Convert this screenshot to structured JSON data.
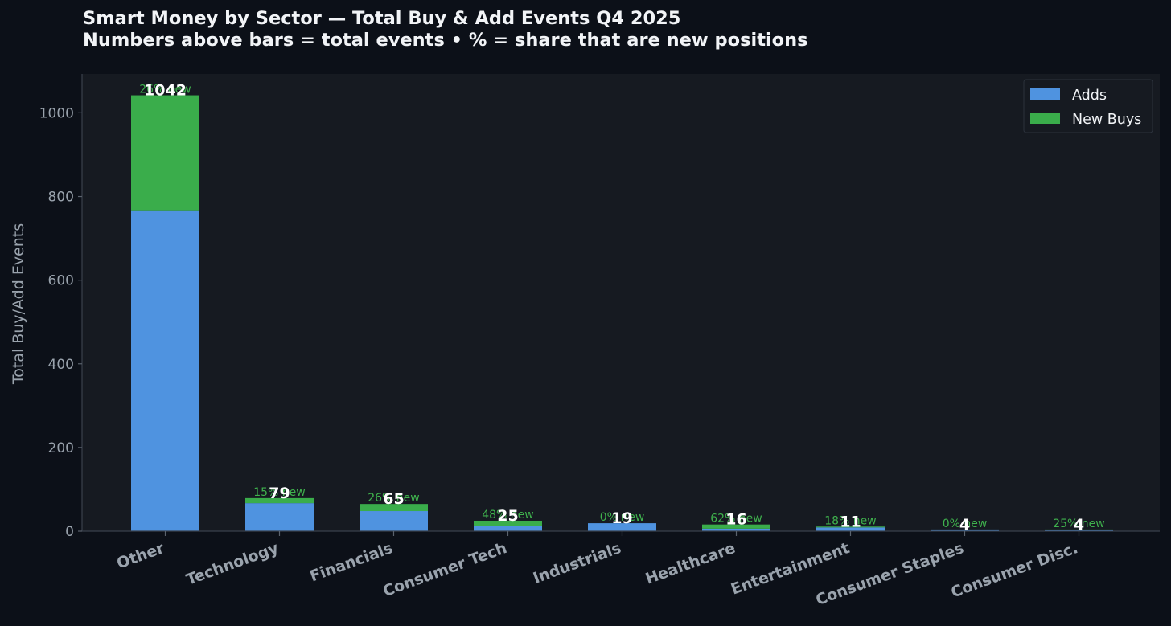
{
  "title_line1": "Smart Money by Sector — Total Buy & Add Events Q4 2025",
  "title_line2": "Numbers above bars = total events  •  % = share that are new positions",
  "colors": {
    "page_background": "#0c1018",
    "plot_background": "#161a21",
    "adds": "#4f93e0",
    "new_buys": "#3aad4b",
    "pct_text": "#3fb24d",
    "axis_text": "#9aa3ad",
    "title_text": "#f2f4f7"
  },
  "chart_data": {
    "type": "bar",
    "stacked": true,
    "title": "Smart Money by Sector — Total Buy & Add Events Q4 2025",
    "subtitle": "Numbers above bars = total events  •  % = share that are new positions",
    "xlabel": "",
    "ylabel": "Total Buy/Add Events",
    "categories": [
      "Other",
      "Technology",
      "Financials",
      "Consumer Tech",
      "Industrials",
      "Healthcare",
      "Entertainment",
      "Consumer Staples",
      "Consumer Disc."
    ],
    "series": [
      {
        "name": "Adds",
        "color": "#4f93e0",
        "values": [
          767,
          67,
          48,
          13,
          19,
          6,
          9,
          4,
          3
        ]
      },
      {
        "name": "New Buys",
        "color": "#3aad4b",
        "values": [
          275,
          12,
          17,
          12,
          0,
          10,
          2,
          0,
          1
        ]
      }
    ],
    "totals": [
      "1042",
      "79",
      "65",
      "25",
      "19",
      "16",
      "11",
      "4",
      "4"
    ],
    "pct_labels": [
      "26% new",
      "15% new",
      "26% new",
      "48% new",
      "0% new",
      "62% new",
      "18% new",
      "0% new",
      "25% new"
    ],
    "yticks": [
      "0",
      "200",
      "400",
      "600",
      "800",
      "1000"
    ],
    "ylim": [
      0,
      1093
    ],
    "legend_position": "top-right",
    "grid": false
  }
}
